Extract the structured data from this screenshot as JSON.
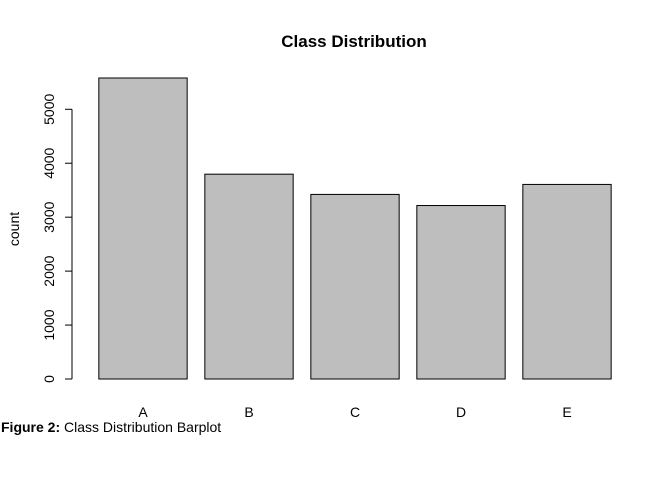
{
  "chart_data": {
    "type": "bar",
    "title": "Class Distribution",
    "xlabel": "",
    "ylabel": "count",
    "categories": [
      "A",
      "B",
      "C",
      "D",
      "E"
    ],
    "values": [
      5580,
      3797,
      3422,
      3216,
      3607
    ],
    "ylim": [
      0,
      5580
    ],
    "yticks": [
      0,
      1000,
      2000,
      3000,
      4000,
      5000
    ],
    "grid": false,
    "legend": "none",
    "bar_color": "#BEBEBE",
    "bar_border_color": "#000000"
  },
  "caption": {
    "label": "Figure 2:",
    "text": "Class Distribution Barplot"
  }
}
